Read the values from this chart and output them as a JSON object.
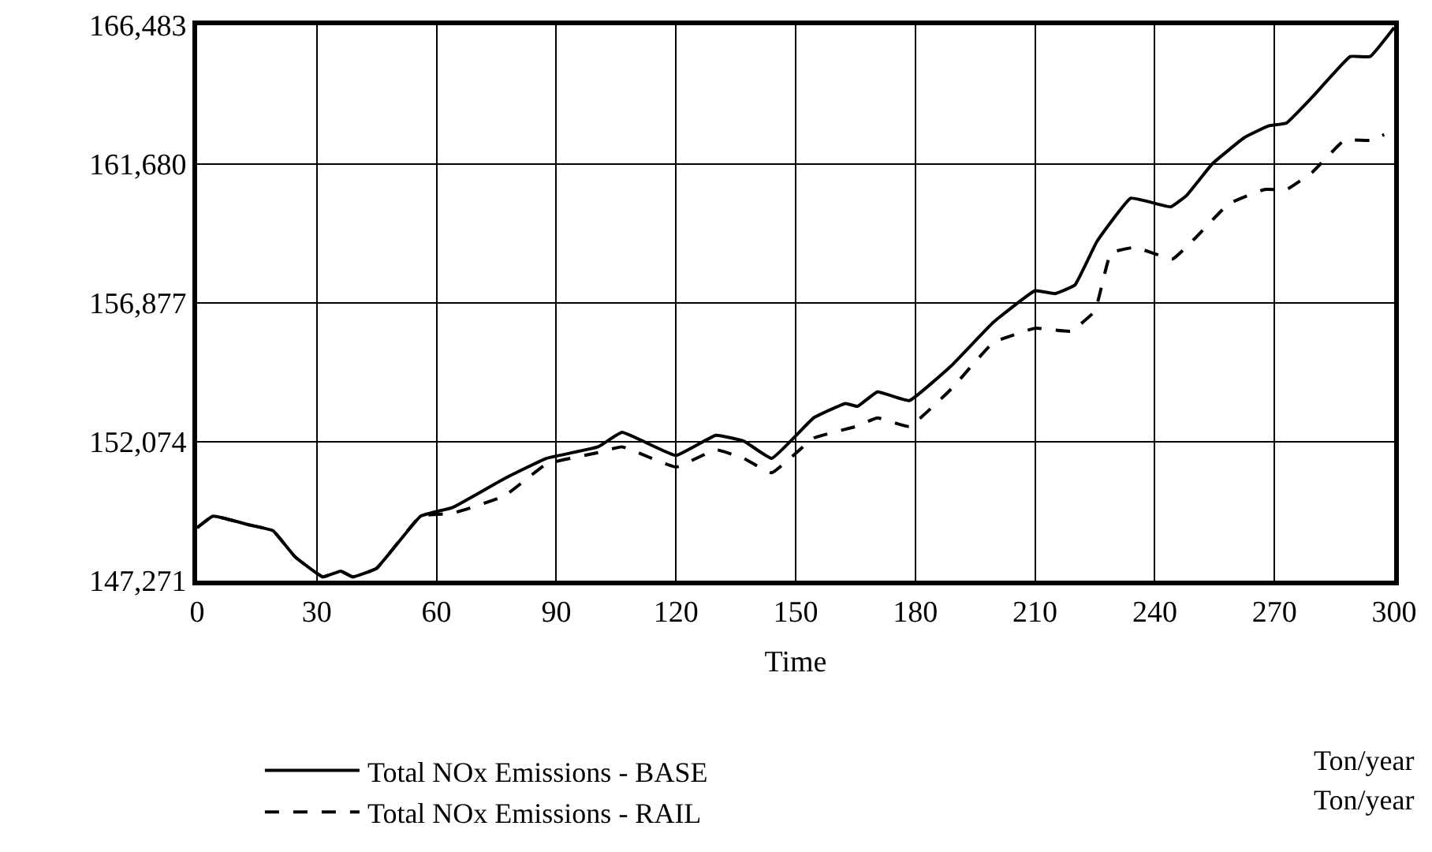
{
  "chart_data": {
    "type": "line",
    "xlabel": "Time",
    "xlim": [
      0,
      300
    ],
    "xticks": [
      0,
      30,
      60,
      90,
      120,
      150,
      180,
      210,
      240,
      270,
      300
    ],
    "ylim": [
      147271,
      166483
    ],
    "yticks": [
      {
        "value": 147271,
        "label": "147,271"
      },
      {
        "value": 152074,
        "label": "152,074"
      },
      {
        "value": 156877,
        "label": "156,877"
      },
      {
        "value": 161680,
        "label": "161,680"
      },
      {
        "value": 166483,
        "label": "166,483"
      }
    ],
    "grid": true,
    "legend": "bottom",
    "annotations": [
      "Ton/year",
      "Ton/year"
    ],
    "series": [
      {
        "name": "Total NOx Emissions - BASE",
        "color": "#000000",
        "line_style": "solid",
        "x": [
          0,
          4,
          13,
          19,
          24.5,
          31.5,
          36,
          39,
          45,
          56,
          64,
          77,
          87.5,
          100.5,
          106.5,
          120,
          130,
          137,
          144,
          154.5,
          162.5,
          165.5,
          170.5,
          178.5,
          189,
          199.5,
          210,
          215,
          220,
          225.5,
          234,
          244,
          248,
          254.5,
          262.5,
          268.5,
          273,
          279.5,
          289,
          294,
          300
        ],
        "values": [
          149100,
          149500,
          149200,
          149000,
          148100,
          147400,
          147600,
          147400,
          147700,
          149500,
          149800,
          150800,
          151500,
          151900,
          152400,
          151600,
          152300,
          152100,
          151500,
          152900,
          153400,
          153300,
          153800,
          153500,
          154700,
          156200,
          157300,
          157200,
          157500,
          159000,
          160500,
          160200,
          160600,
          161700,
          162600,
          163000,
          163100,
          164000,
          165400,
          165400,
          166400
        ]
      },
      {
        "name": "Total NOx Emissions - RAIL",
        "color": "#000000",
        "line_style": "dashed",
        "x": [
          0,
          4,
          13,
          19,
          24.5,
          31.5,
          36,
          39,
          45,
          56,
          64,
          77,
          87.5,
          100.5,
          106.5,
          120,
          130,
          137,
          144,
          154.5,
          165,
          170.5,
          178.5,
          189,
          199.5,
          210,
          219,
          225,
          229,
          235,
          244.5,
          250,
          258.5,
          267.5,
          273,
          279.5,
          287.5,
          294,
          297.5
        ],
        "values": [
          149100,
          149500,
          149200,
          149000,
          148100,
          147400,
          147600,
          147400,
          147700,
          149500,
          149600,
          150200,
          151300,
          151700,
          151900,
          151200,
          151800,
          151500,
          151000,
          152200,
          152600,
          152900,
          152600,
          153900,
          155500,
          156000,
          155900,
          156600,
          158600,
          158800,
          158400,
          159100,
          160300,
          160800,
          160800,
          161400,
          162500,
          162500,
          162700
        ]
      }
    ]
  }
}
